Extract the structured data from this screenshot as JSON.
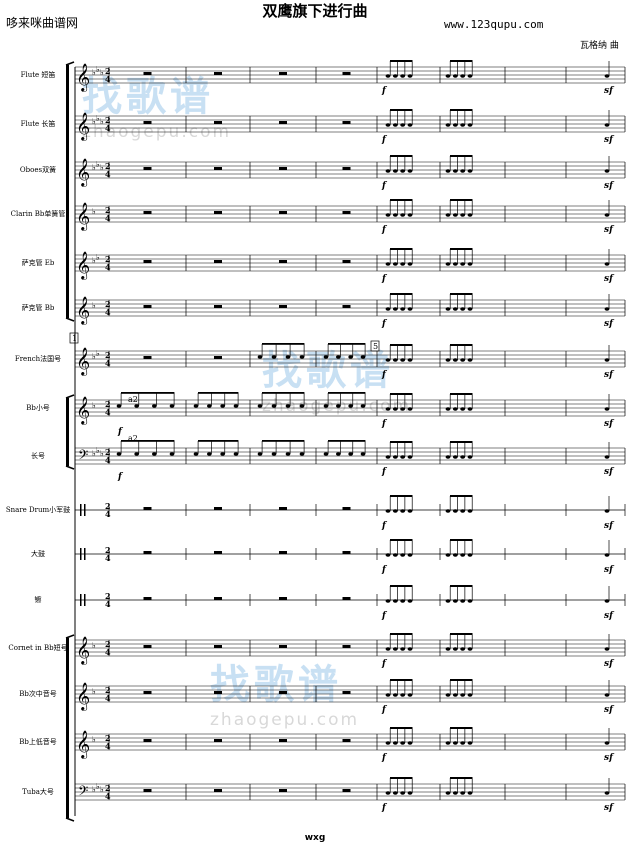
{
  "header": {
    "title": "双鹰旗下进行曲",
    "site_left": "哆来咪曲谱网",
    "site_right": "www.123qupu.com",
    "composer": "瓦格纳 曲"
  },
  "footer": {
    "credit": "wxg"
  },
  "watermark": {
    "brand_cn": "找歌谱",
    "brand_en": "zhaogepu.com"
  },
  "score": {
    "time_signature": "2/4",
    "rehearsal_marks": [
      "1",
      "5"
    ],
    "dynamics": [
      "f",
      "sf"
    ],
    "annotations": [
      "a2",
      "a2"
    ],
    "instruments": [
      {
        "name": "Flute 短笛",
        "clef": "treble",
        "key": "Eb"
      },
      {
        "name": "Flute 长笛",
        "clef": "treble",
        "key": "Eb"
      },
      {
        "name": "Oboes双簧",
        "clef": "treble",
        "key": "Eb"
      },
      {
        "name": "Clarin Bb单簧管",
        "clef": "treble",
        "key": "F"
      },
      {
        "name": "萨克管 Eb",
        "clef": "treble",
        "key": "Bb"
      },
      {
        "name": "萨克管 Bb",
        "clef": "treble",
        "key": "F"
      },
      {
        "name": "French法国号",
        "clef": "treble",
        "key": "Bb"
      },
      {
        "name": "Bb小号",
        "clef": "treble",
        "key": "F"
      },
      {
        "name": "长号",
        "clef": "bass",
        "key": "Eb"
      },
      {
        "name": "Snare Drum小军鼓",
        "clef": "perc",
        "key": ""
      },
      {
        "name": "大鼓",
        "clef": "perc",
        "key": ""
      },
      {
        "name": "镲",
        "clef": "perc",
        "key": ""
      },
      {
        "name": "Cornet in Bb短号",
        "clef": "treble",
        "key": "F"
      },
      {
        "name": "Bb次中音号",
        "clef": "treble",
        "key": "F"
      },
      {
        "name": "Bb上低音号",
        "clef": "treble",
        "key": "F"
      },
      {
        "name": "Tuba大号",
        "clef": "bass",
        "key": "Eb"
      }
    ]
  }
}
